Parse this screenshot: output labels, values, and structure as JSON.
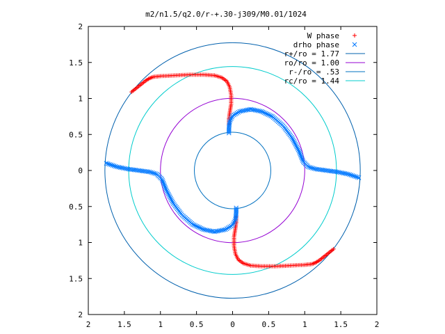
{
  "chart_data": {
    "type": "scatter",
    "title": "m2/n1.5/q2.0/r-+.30-j309/M0.01/1024",
    "xlabel": "",
    "ylabel": "",
    "xlim": [
      -2,
      2
    ],
    "ylim": [
      -2,
      2
    ],
    "x_tick_values": [
      -2,
      -1.5,
      -1,
      -0.5,
      0,
      0.5,
      1,
      1.5,
      2
    ],
    "x_tick_labels": [
      "2",
      "1.5",
      "1",
      "0.5",
      "0",
      "0.5",
      "1",
      "1.5",
      "2"
    ],
    "y_tick_values": [
      2,
      1.5,
      1,
      0.5,
      0,
      -0.5,
      -1,
      -1.5,
      -2
    ],
    "y_tick_labels": [
      "2",
      "1.5",
      "1",
      "0.5",
      "0",
      "0.5",
      "1",
      "1.5",
      "2"
    ],
    "grid": false,
    "legend_position": "top-right",
    "series": [
      {
        "name": "W phase",
        "kind": "points",
        "marker": "+",
        "color": "#ff0000",
        "segments": [
          [
            [
              -1.4,
              1.09
            ],
            [
              -1.35,
              1.13
            ],
            [
              -1.3,
              1.17
            ],
            [
              -1.25,
              1.21
            ],
            [
              -1.2,
              1.25
            ],
            [
              -1.15,
              1.28
            ],
            [
              -1.1,
              1.3
            ],
            [
              -1.0,
              1.31
            ],
            [
              -0.8,
              1.32
            ],
            [
              -0.6,
              1.33
            ],
            [
              -0.4,
              1.33
            ],
            [
              -0.25,
              1.32
            ],
            [
              -0.15,
              1.29
            ],
            [
              -0.08,
              1.24
            ],
            [
              -0.04,
              1.16
            ],
            [
              -0.02,
              1.05
            ],
            [
              -0.02,
              0.92
            ],
            [
              -0.04,
              0.8
            ],
            [
              -0.05,
              0.72
            ],
            [
              -0.05,
              0.64
            ]
          ],
          [
            [
              1.4,
              -1.09
            ],
            [
              1.35,
              -1.13
            ],
            [
              1.3,
              -1.17
            ],
            [
              1.25,
              -1.21
            ],
            [
              1.2,
              -1.25
            ],
            [
              1.15,
              -1.28
            ],
            [
              1.1,
              -1.3
            ],
            [
              1.0,
              -1.31
            ],
            [
              0.8,
              -1.32
            ],
            [
              0.6,
              -1.33
            ],
            [
              0.4,
              -1.33
            ],
            [
              0.25,
              -1.32
            ],
            [
              0.15,
              -1.29
            ],
            [
              0.08,
              -1.24
            ],
            [
              0.04,
              -1.16
            ],
            [
              0.02,
              -1.05
            ],
            [
              0.02,
              -0.92
            ],
            [
              0.04,
              -0.8
            ],
            [
              0.05,
              -0.72
            ],
            [
              0.05,
              -0.64
            ]
          ]
        ]
      },
      {
        "name": "drho phase",
        "kind": "points",
        "marker": "x",
        "color": "#0078ff",
        "segments": [
          [
            [
              -0.05,
              0.52
            ],
            [
              -0.05,
              0.6
            ],
            [
              -0.04,
              0.68
            ],
            [
              0.0,
              0.76
            ],
            [
              0.1,
              0.82
            ],
            [
              0.25,
              0.85
            ],
            [
              0.4,
              0.82
            ],
            [
              0.55,
              0.75
            ],
            [
              0.7,
              0.62
            ],
            [
              0.82,
              0.46
            ],
            [
              0.92,
              0.27
            ],
            [
              0.98,
              0.12
            ],
            [
              1.05,
              0.05
            ],
            [
              1.15,
              0.02
            ],
            [
              1.3,
              0.0
            ],
            [
              1.45,
              -0.02
            ],
            [
              1.6,
              -0.05
            ],
            [
              1.75,
              -0.1
            ]
          ],
          [
            [
              0.05,
              -0.52
            ],
            [
              0.05,
              -0.6
            ],
            [
              0.04,
              -0.68
            ],
            [
              0.0,
              -0.76
            ],
            [
              -0.1,
              -0.82
            ],
            [
              -0.25,
              -0.85
            ],
            [
              -0.4,
              -0.82
            ],
            [
              -0.55,
              -0.75
            ],
            [
              -0.7,
              -0.62
            ],
            [
              -0.82,
              -0.46
            ],
            [
              -0.92,
              -0.27
            ],
            [
              -0.98,
              -0.12
            ],
            [
              -1.05,
              -0.05
            ],
            [
              -1.15,
              -0.02
            ],
            [
              -1.3,
              0.0
            ],
            [
              -1.45,
              0.02
            ],
            [
              -1.6,
              0.05
            ],
            [
              -1.75,
              0.1
            ]
          ]
        ]
      },
      {
        "name": "r+/ro = 1.77",
        "kind": "circle",
        "radius": 1.77,
        "color": "#0060ad"
      },
      {
        "name": "ro/ro = 1.00",
        "kind": "circle",
        "radius": 1.0,
        "color": "#9400d3"
      },
      {
        "name": "r-/ro = .53",
        "kind": "circle",
        "radius": 0.53,
        "color": "#0070c0"
      },
      {
        "name": "rc/ro = 1.44",
        "kind": "circle",
        "radius": 1.44,
        "color": "#00cccc"
      }
    ]
  }
}
